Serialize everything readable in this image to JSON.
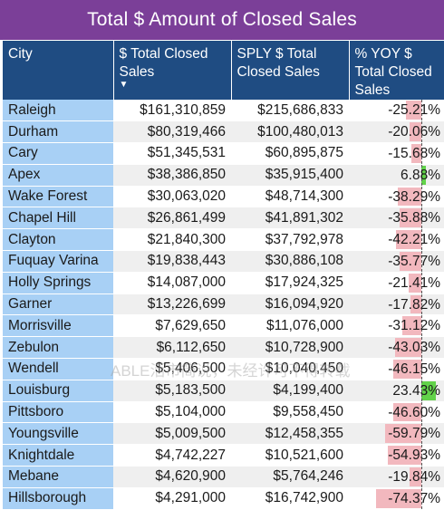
{
  "title": "Total $ Amount of Closed Sales",
  "columns": [
    "City",
    "$ Total Closed Sales",
    "SPLY $ Total Closed Sales",
    "% YOY $ Total Closed Sales"
  ],
  "sort_icon": "sort-descending-icon",
  "colors": {
    "title_bg": "#7b3f98",
    "header_bg": "#1f4c82",
    "city_bg": "#a8d0f5",
    "negative_bar": "#f2b8be",
    "positive_bar": "#62d24a"
  },
  "rows": [
    {
      "city": "Raleigh",
      "total": "$161,310,859",
      "sply": "$215,686,833",
      "yoy": "-25.21%",
      "yoy_value": -25.21
    },
    {
      "city": "Durham",
      "total": "$80,319,466",
      "sply": "$100,480,013",
      "yoy": "-20.06%",
      "yoy_value": -20.06
    },
    {
      "city": "Cary",
      "total": "$51,345,531",
      "sply": "$60,895,875",
      "yoy": "-15.68%",
      "yoy_value": -15.68
    },
    {
      "city": "Apex",
      "total": "$38,386,850",
      "sply": "$35,915,400",
      "yoy": "6.88%",
      "yoy_value": 6.88
    },
    {
      "city": "Wake Forest",
      "total": "$30,063,020",
      "sply": "$48,714,300",
      "yoy": "-38.29%",
      "yoy_value": -38.29
    },
    {
      "city": "Chapel Hill",
      "total": "$26,861,499",
      "sply": "$41,891,302",
      "yoy": "-35.88%",
      "yoy_value": -35.88
    },
    {
      "city": "Clayton",
      "total": "$21,840,300",
      "sply": "$37,792,978",
      "yoy": "-42.21%",
      "yoy_value": -42.21
    },
    {
      "city": "Fuquay Varina",
      "total": "$19,838,443",
      "sply": "$30,886,108",
      "yoy": "-35.77%",
      "yoy_value": -35.77
    },
    {
      "city": "Holly Springs",
      "total": "$14,087,000",
      "sply": "$17,924,325",
      "yoy": "-21.41%",
      "yoy_value": -21.41
    },
    {
      "city": "Garner",
      "total": "$13,226,699",
      "sply": "$16,094,920",
      "yoy": "-17.82%",
      "yoy_value": -17.82
    },
    {
      "city": "Morrisville",
      "total": "$7,629,650",
      "sply": "$11,076,000",
      "yoy": "-31.12%",
      "yoy_value": -31.12
    },
    {
      "city": "Zebulon",
      "total": "$6,112,650",
      "sply": "$10,728,900",
      "yoy": "-43.03%",
      "yoy_value": -43.03
    },
    {
      "city": "Wendell",
      "total": "$5,406,500",
      "sply": "$10,040,450",
      "yoy": "-46.15%",
      "yoy_value": -46.15
    },
    {
      "city": "Louisburg",
      "total": "$5,183,500",
      "sply": "$4,199,400",
      "yoy": "23.43%",
      "yoy_value": 23.43
    },
    {
      "city": "Pittsboro",
      "total": "$5,104,000",
      "sply": "$9,558,450",
      "yoy": "-46.60%",
      "yoy_value": -46.6
    },
    {
      "city": "Youngsville",
      "total": "$5,009,500",
      "sply": "$12,458,355",
      "yoy": "-59.79%",
      "yoy_value": -59.79
    },
    {
      "city": "Knightdale",
      "total": "$4,742,227",
      "sply": "$10,521,600",
      "yoy": "-54.93%",
      "yoy_value": -54.93
    },
    {
      "city": "Mebane",
      "total": "$4,620,900",
      "sply": "$5,764,246",
      "yoy": "-19.84%",
      "yoy_value": -19.84
    },
    {
      "city": "Hillsborough",
      "total": "$4,291,000",
      "sply": "$16,742,900",
      "yoy": "-74.37%",
      "yoy_value": -74.37
    }
  ],
  "watermark": "ABLE活市简说，未经许可不得转载"
}
